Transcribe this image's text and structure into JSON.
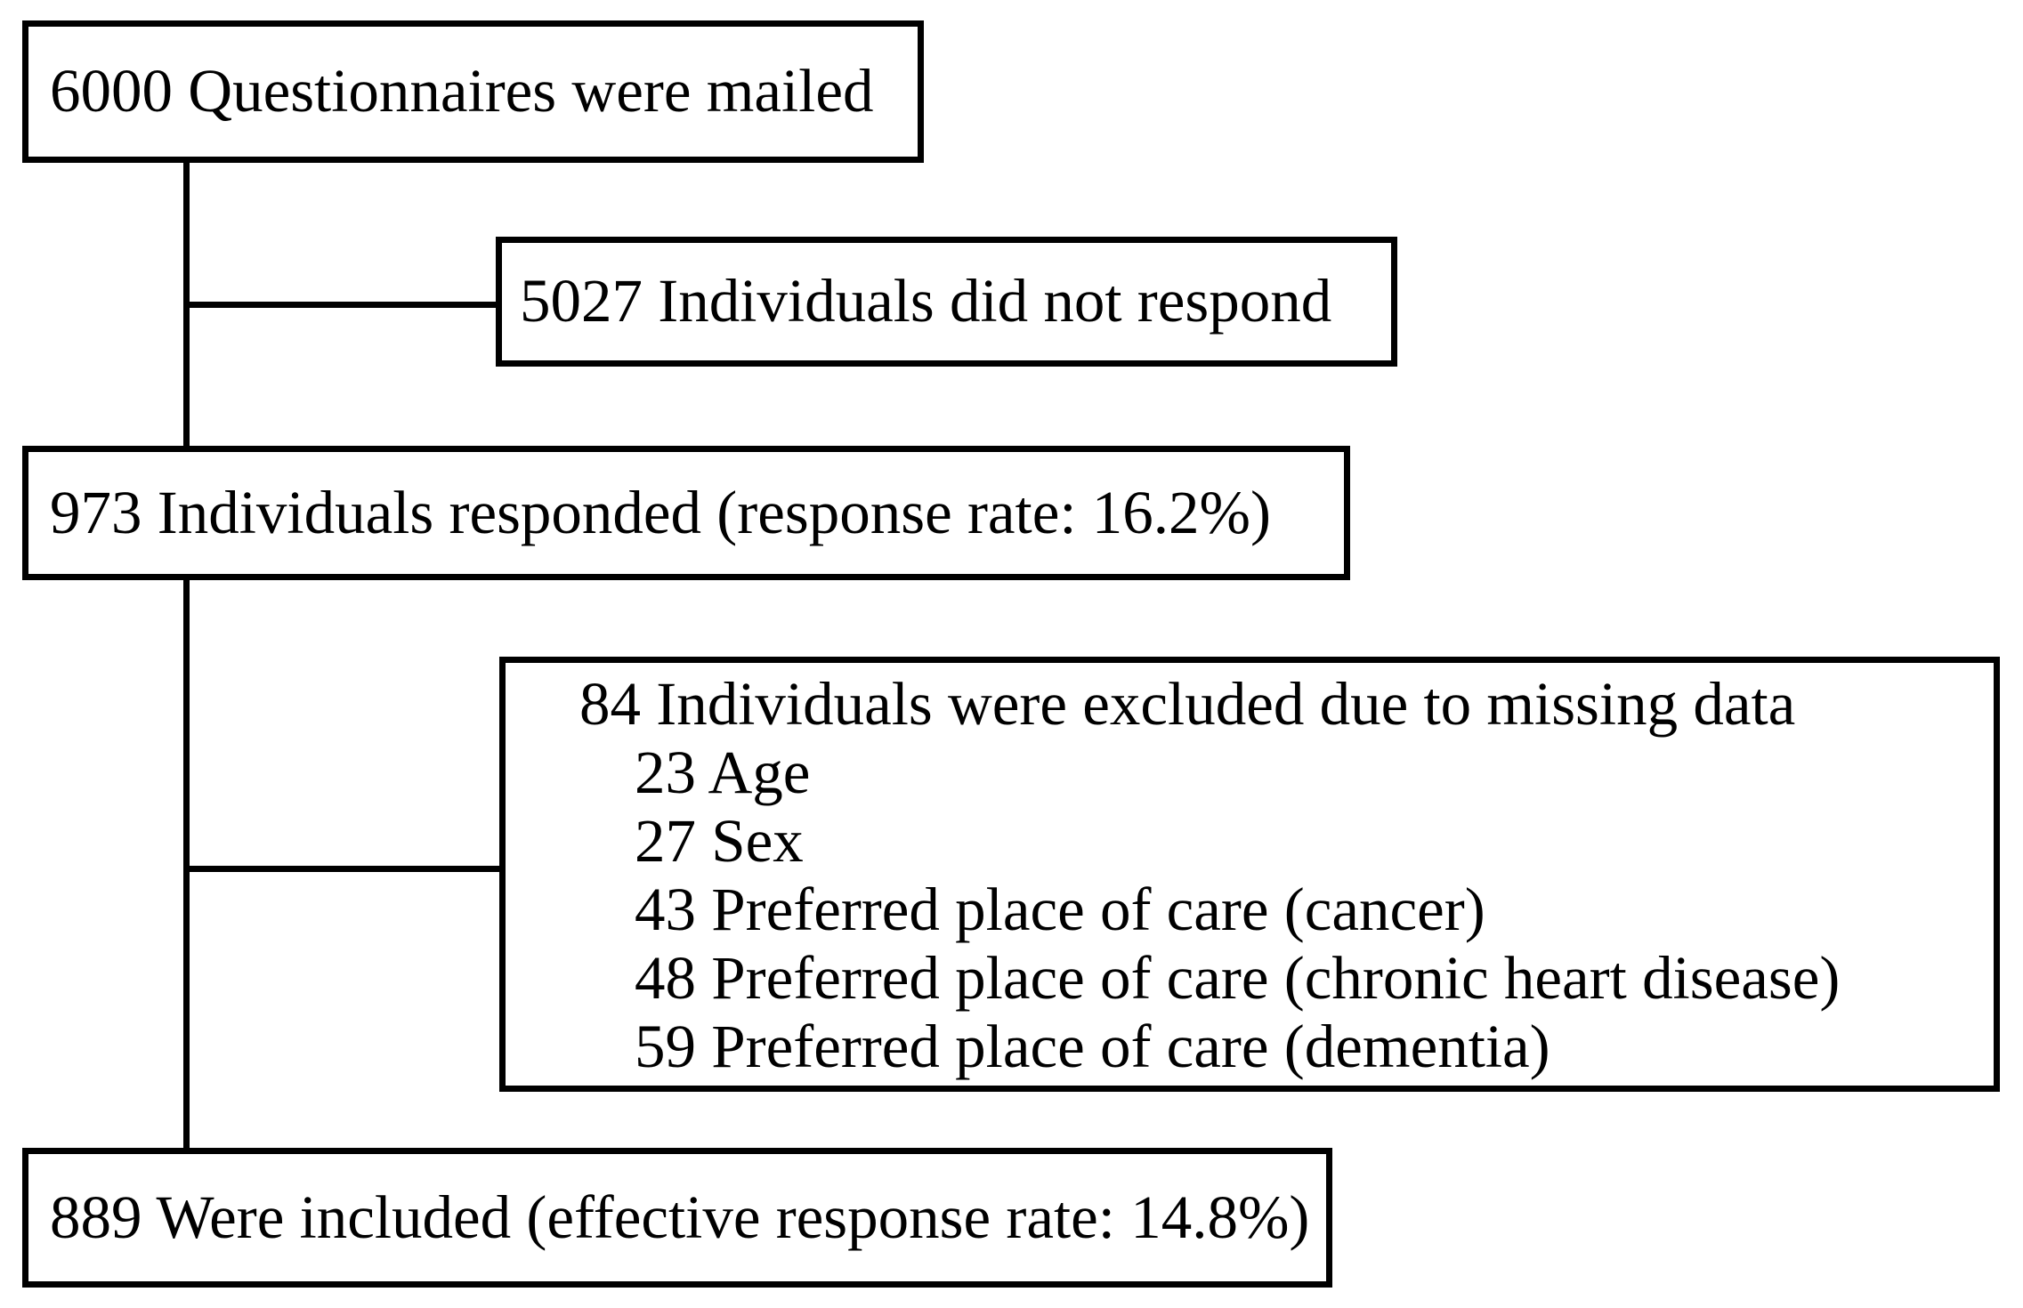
{
  "figure": {
    "kind": "participant-flow-diagram",
    "colors": {
      "background": "#ffffff",
      "line": "#000000",
      "text": "#000000"
    },
    "boxes": {
      "mailed": "6000 Questionnaires were mailed",
      "not_responded": "5027 Individuals did not respond",
      "responded": "973 Individuals responded (response rate: 16.2%)",
      "excluded_header": "84 Individuals were excluded due to missing data",
      "excluded_items": [
        "23 Age",
        "27 Sex",
        "43 Preferred place of care (cancer)",
        "48 Preferred place of care (chronic heart disease)",
        "59 Preferred place of care (dementia)"
      ],
      "included": "889 Were included (effective response rate: 14.8%)"
    }
  }
}
